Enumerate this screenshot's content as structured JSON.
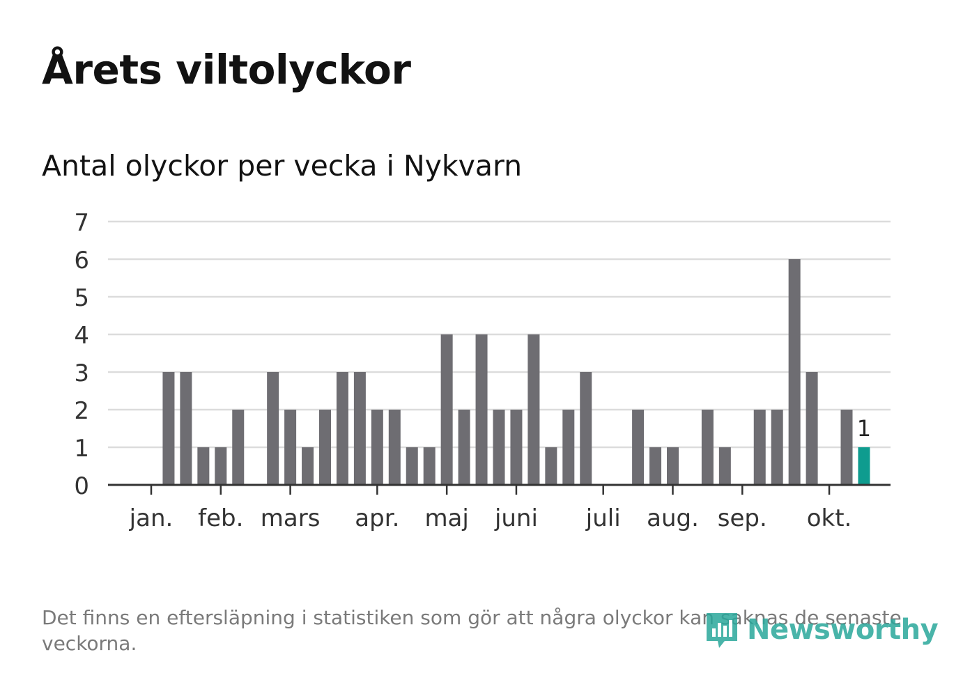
{
  "title": "Årets viltolyckor",
  "subtitle": "Antal olyckor per vecka i Nykvarn",
  "note": "Det finns en eftersläpning i statistiken som gör att några olyckor kan saknas de senaste veckorna.",
  "brand": {
    "name": "Newsworthy",
    "color": "#2aa79b"
  },
  "colors": {
    "bar": "#6e6d72",
    "highlight": "#0e9c8f",
    "grid": "#dcdcdc",
    "axis": "#333333",
    "tick_text": "#333333"
  },
  "chart_data": {
    "type": "bar",
    "title": "Antal olyckor per vecka i Nykvarn",
    "xlabel": "",
    "ylabel": "",
    "ylim": [
      0,
      7
    ],
    "yticks": [
      "0",
      "1",
      "2",
      "3",
      "4",
      "5",
      "6",
      "7"
    ],
    "weeks": [
      1,
      2,
      3,
      4,
      5,
      6,
      7,
      8,
      9,
      10,
      11,
      12,
      13,
      14,
      15,
      16,
      17,
      18,
      19,
      20,
      21,
      22,
      23,
      24,
      25,
      26,
      27,
      28,
      29,
      30,
      31,
      32,
      33,
      34,
      35,
      36,
      37,
      38,
      39,
      40,
      41,
      42
    ],
    "values": [
      0,
      3,
      3,
      1,
      1,
      2,
      0,
      3,
      2,
      1,
      2,
      3,
      3,
      2,
      2,
      1,
      1,
      4,
      2,
      4,
      2,
      2,
      4,
      1,
      2,
      3,
      0,
      0,
      2,
      1,
      1,
      0,
      2,
      1,
      0,
      2,
      2,
      6,
      3,
      0,
      2,
      1
    ],
    "highlight": {
      "week": 42,
      "value": 1,
      "label": "1"
    },
    "months": [
      {
        "label": "jan.",
        "week": 1
      },
      {
        "label": "feb.",
        "week": 5
      },
      {
        "label": "mars",
        "week": 9
      },
      {
        "label": "apr.",
        "week": 14
      },
      {
        "label": "maj",
        "week": 18
      },
      {
        "label": "juni",
        "week": 22
      },
      {
        "label": "juli",
        "week": 27
      },
      {
        "label": "aug.",
        "week": 31
      },
      {
        "label": "sep.",
        "week": 35
      },
      {
        "label": "okt.",
        "week": 40
      }
    ],
    "grid": true
  }
}
